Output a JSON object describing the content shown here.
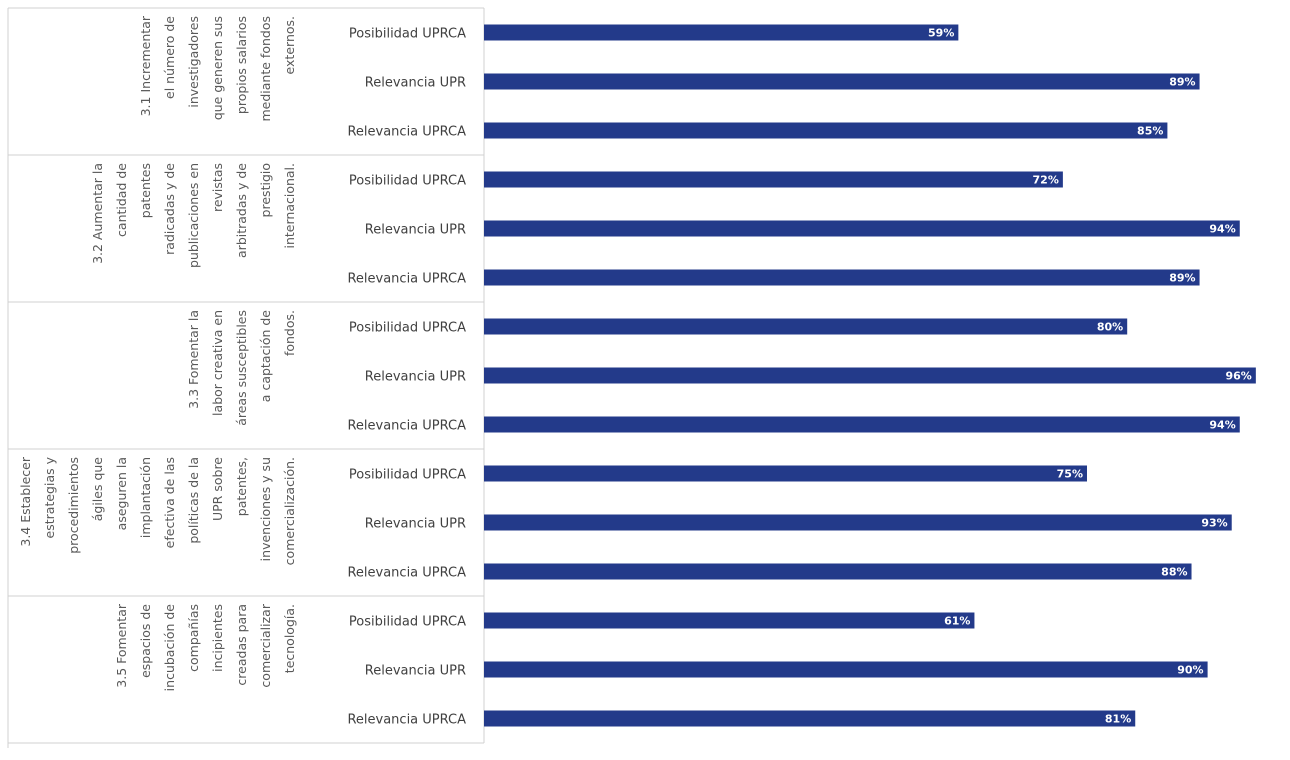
{
  "colors": {
    "bar": "#233a8a",
    "grid": "#d0d0d0",
    "label": "#404040",
    "value_label": "#ffffff"
  },
  "chart_data": {
    "type": "bar",
    "orientation": "horizontal",
    "title": "",
    "xlabel": "",
    "ylabel": "",
    "xlim": [
      0,
      100
    ],
    "value_format": "percent",
    "grid": false,
    "legend": "none",
    "groups": [
      {
        "lines": [
          "3.1 Incrementar",
          "el número de",
          "investigadores",
          "que generen sus",
          "propios salarios",
          "mediante fondos",
          "externos."
        ],
        "categories": [
          "Posibilidad UPRCA",
          "Relevancia UPR",
          "Relevancia UPRCA"
        ],
        "values": [
          59,
          89,
          85
        ],
        "labels": [
          "59%",
          "89%",
          "85%"
        ]
      },
      {
        "lines": [
          "3.2 Aumentar la",
          "cantidad de",
          "patentes",
          "radicadas y de",
          "publicaciones en",
          "revistas",
          "arbitradas y de",
          "prestigio",
          "internacional."
        ],
        "categories": [
          "Posibilidad UPRCA",
          "Relevancia UPR",
          "Relevancia UPRCA"
        ],
        "values": [
          72,
          94,
          89
        ],
        "labels": [
          "72%",
          "94%",
          "89%"
        ]
      },
      {
        "lines": [
          "3.3 Fomentar la",
          "labor creativa en",
          "áreas susceptibles",
          "a captación de",
          "fondos."
        ],
        "categories": [
          "Posibilidad UPRCA",
          "Relevancia UPR",
          "Relevancia UPRCA"
        ],
        "values": [
          80,
          96,
          94
        ],
        "labels": [
          "80%",
          "96%",
          "94%"
        ]
      },
      {
        "lines": [
          "3.4 Establecer",
          "estrategias y",
          "procedimientos",
          "ágiles que",
          "aseguren la",
          "implantación",
          "efectiva de las",
          "políticas de la",
          "UPR sobre",
          "patentes,",
          "invenciones y su",
          "comercialización."
        ],
        "categories": [
          "Posibilidad UPRCA",
          "Relevancia UPR",
          "Relevancia UPRCA"
        ],
        "values": [
          75,
          93,
          88
        ],
        "labels": [
          "75%",
          "93%",
          "88%"
        ]
      },
      {
        "lines": [
          "3.5 Fomentar",
          "espacios de",
          "incubación de",
          "compañías",
          "incipientes",
          "creadas para",
          "comercializar",
          "tecnología."
        ],
        "categories": [
          "Posibilidad UPRCA",
          "Relevancia UPR",
          "Relevancia UPRCA"
        ],
        "values": [
          61,
          90,
          81
        ],
        "labels": [
          "61%",
          "90%",
          "81%"
        ]
      }
    ]
  }
}
